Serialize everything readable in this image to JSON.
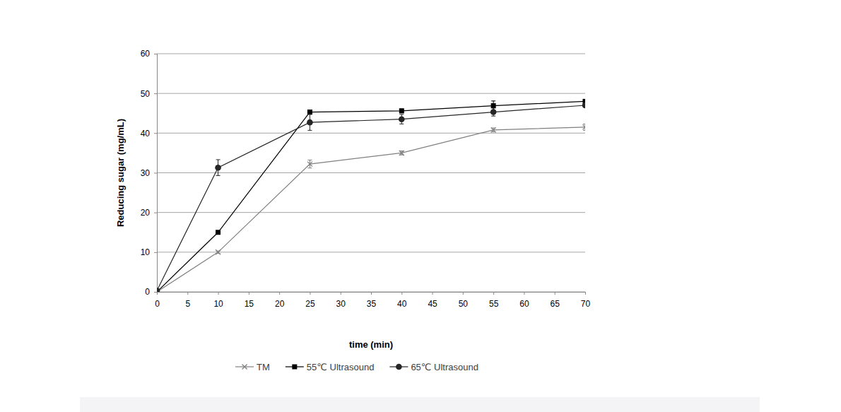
{
  "chart_data": {
    "type": "line",
    "x_label": "time (min)",
    "y_label": "Reducing sugar (mg/mL)",
    "x": [
      0,
      10,
      25,
      40,
      55,
      70
    ],
    "series": [
      {
        "name": "TM",
        "color": "#808080",
        "marker": "x",
        "line_style": "solid",
        "values": [
          0,
          10,
          32.2,
          35,
          40.8,
          41.5
        ],
        "errors": [
          0,
          0.3,
          1,
          0.5,
          0.5,
          0.8
        ]
      },
      {
        "name": "55℃ Ultrasound",
        "color": "#000000",
        "marker": "square",
        "line_style": "solid",
        "values": [
          0,
          15,
          45.3,
          45.6,
          46.9,
          48
        ],
        "errors": [
          0,
          0.3,
          0.5,
          0.5,
          1.2,
          0.5
        ]
      },
      {
        "name": "65℃ Ultrasound",
        "color": "#262626",
        "marker": "circle",
        "line_style": "solid",
        "values": [
          0.3,
          31.3,
          42.7,
          43.5,
          45.3,
          47
        ],
        "errors": [
          0,
          2,
          2,
          1.2,
          1,
          0.5
        ]
      }
    ],
    "xlim": [
      0,
      70
    ],
    "xticks": [
      0,
      5,
      10,
      15,
      20,
      25,
      30,
      35,
      40,
      45,
      50,
      55,
      60,
      65,
      70
    ],
    "ylim": [
      0,
      60
    ],
    "yticks": [
      0,
      10,
      20,
      30,
      40,
      50,
      60
    ],
    "grid": true,
    "legend": "bottom"
  }
}
